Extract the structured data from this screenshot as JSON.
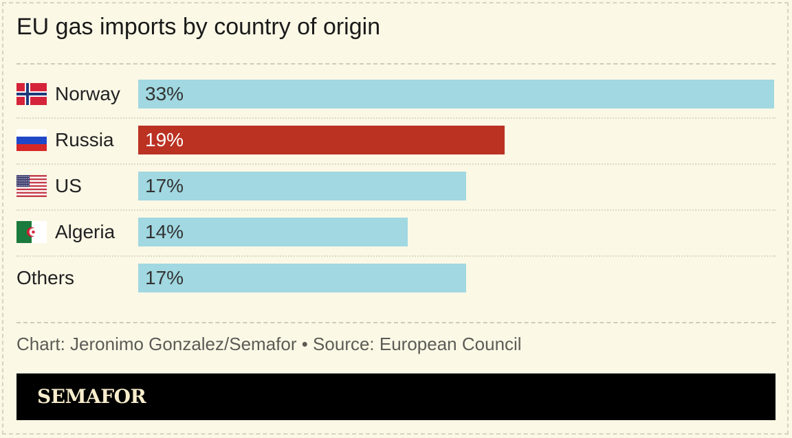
{
  "title": "EU gas imports by country of origin",
  "credit": "Chart: Jeronimo Gonzalez/Semafor • Source: European Council",
  "brand": "SEMAFOR",
  "colors": {
    "background": "#fbf8e6",
    "bar": "#a1d8e1",
    "highlight": "#bb3222",
    "brand_bar": "#000000",
    "brand_text": "#f7eccb"
  },
  "chart_data": {
    "type": "bar",
    "orientation": "horizontal",
    "title": "EU gas imports by country of origin",
    "categories": [
      "Norway",
      "Russia",
      "US",
      "Algeria",
      "Others"
    ],
    "values": [
      33,
      19,
      17,
      14,
      17
    ],
    "value_labels": [
      "33%",
      "19%",
      "17%",
      "14%",
      "17%"
    ],
    "unit": "%",
    "flags": [
      "norway-flag",
      "russia-flag",
      "us-flag",
      "algeria-flag",
      ""
    ],
    "highlight_index": 1,
    "xlim": [
      0,
      33
    ],
    "grid": false,
    "legend": "none"
  }
}
